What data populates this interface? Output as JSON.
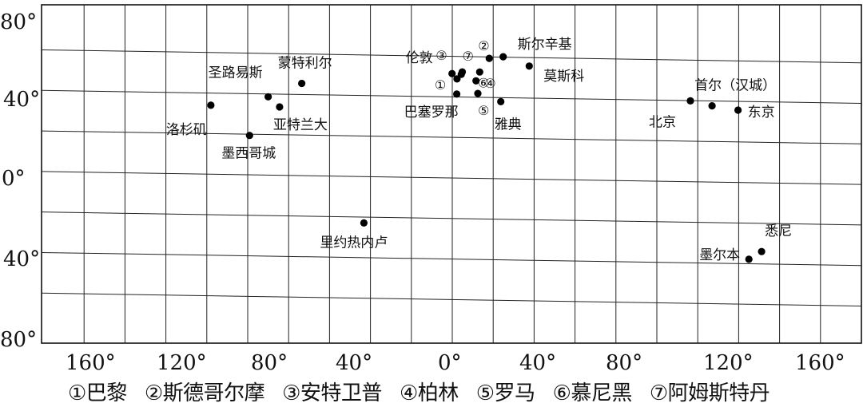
{
  "map": {
    "axes": {
      "lat_labels": [
        "80°",
        "40°",
        "0°",
        "40°",
        "80°"
      ],
      "lon_labels": [
        "160°",
        "120°",
        "80°",
        "40°",
        "0°",
        "40°",
        "80°",
        "120°",
        "160°"
      ]
    },
    "cities": [
      {
        "id": "los-angeles",
        "label": "洛杉矶",
        "lon": -118,
        "lat": 34
      },
      {
        "id": "st-louis",
        "label": "圣路易斯",
        "lon": -90,
        "lat": 38.6
      },
      {
        "id": "atlanta",
        "label": "亚特兰大",
        "lon": -84.4,
        "lat": 33.7
      },
      {
        "id": "montreal",
        "label": "蒙特利尔",
        "lon": -73.6,
        "lat": 45.5
      },
      {
        "id": "mexico-city",
        "label": "墨西哥城",
        "lon": -99.1,
        "lat": 19.4
      },
      {
        "id": "rio",
        "label": "里约热内卢",
        "lon": -43.2,
        "lat": -22.9
      },
      {
        "id": "london",
        "label": "伦敦",
        "lon": -0.1,
        "lat": 51.5
      },
      {
        "id": "paris",
        "label": "①",
        "lon": 2.3,
        "lat": 48.9
      },
      {
        "id": "stockholm",
        "label": "②",
        "lon": 18.1,
        "lat": 59.3
      },
      {
        "id": "antwerp",
        "label": "③",
        "lon": 4.4,
        "lat": 51.2
      },
      {
        "id": "berlin",
        "label": "④",
        "lon": 13.4,
        "lat": 52.5
      },
      {
        "id": "rome",
        "label": "⑤",
        "lon": 12.5,
        "lat": 41.9
      },
      {
        "id": "munich",
        "label": "⑥",
        "lon": 11.6,
        "lat": 48.1
      },
      {
        "id": "amsterdam",
        "label": "⑦",
        "lon": 4.9,
        "lat": 52.4
      },
      {
        "id": "barcelona",
        "label": "巴塞罗那",
        "lon": 2.2,
        "lat": 41.4
      },
      {
        "id": "helsinki",
        "label": "斯尔辛基",
        "lon": 24.9,
        "lat": 60.2
      },
      {
        "id": "moscow",
        "label": "莫斯科",
        "lon": 37.6,
        "lat": 55.8
      },
      {
        "id": "athens",
        "label": "雅典",
        "lon": 23.7,
        "lat": 38
      },
      {
        "id": "beijing",
        "label": "北京",
        "lon": 116.4,
        "lat": 39.9
      },
      {
        "id": "seoul",
        "label": "首尔（汉城）",
        "lon": 127,
        "lat": 37.6
      },
      {
        "id": "tokyo",
        "label": "东京",
        "lon": 139.7,
        "lat": 35.7
      },
      {
        "id": "sydney",
        "label": "悉尼",
        "lon": 151.2,
        "lat": -33.9
      },
      {
        "id": "melbourne",
        "label": "墨尔本",
        "lon": 145,
        "lat": -37.8
      }
    ]
  },
  "legend": {
    "items": [
      "①巴黎",
      "②斯德哥尔摩",
      "③安特卫普",
      "④柏林",
      "⑤罗马",
      "⑥慕尼黑",
      "⑦阿姆斯特丹"
    ]
  }
}
